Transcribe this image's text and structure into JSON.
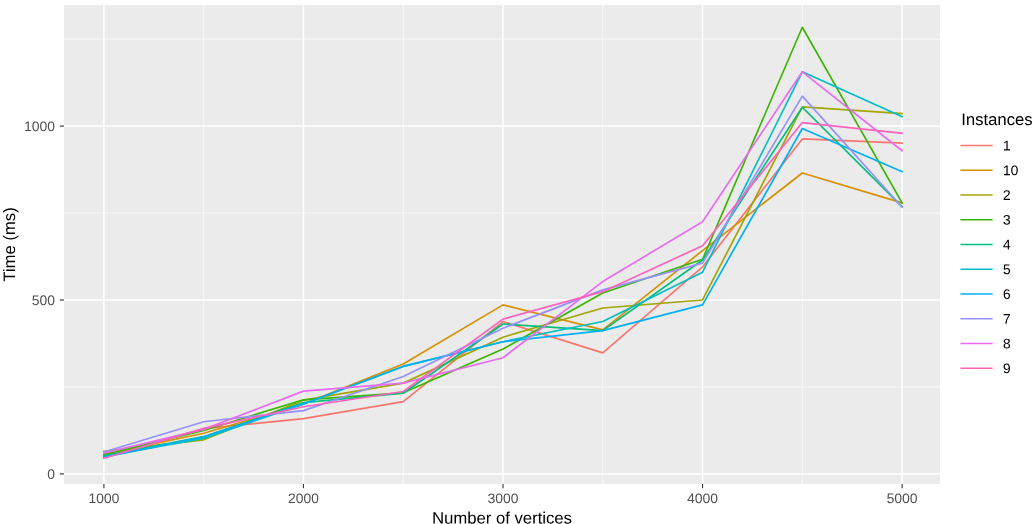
{
  "chart_data": {
    "type": "line",
    "xlabel": "Number of vertices",
    "ylabel": "Time (ms)",
    "legend_title": "Instances",
    "legend": "right",
    "grid": true,
    "x": [
      1000,
      1500,
      2000,
      2500,
      3000,
      3500,
      4000,
      4500,
      5000
    ],
    "xlim": [
      800,
      5190
    ],
    "xticks": [
      1000,
      2000,
      3000,
      4000,
      5000
    ],
    "ylim": [
      -29,
      1348
    ],
    "yticks": [
      0,
      500,
      1000
    ],
    "series": [
      {
        "name": "1",
        "color": "#F8766D",
        "values": [
          50,
          130,
          159,
          208,
          438,
          348,
          595,
          963,
          951
        ]
      },
      {
        "name": "10",
        "color": "#D89000",
        "values": [
          56,
          117,
          201,
          316,
          486,
          414,
          642,
          865,
          779
        ]
      },
      {
        "name": "2",
        "color": "#A3A500",
        "values": [
          65,
          98,
          212,
          261,
          393,
          477,
          500,
          1055,
          1036
        ]
      },
      {
        "name": "3",
        "color": "#39B600",
        "values": [
          55,
          125,
          213,
          233,
          359,
          520,
          617,
          1284,
          779
        ]
      },
      {
        "name": "4",
        "color": "#00BF7D",
        "values": [
          52,
          107,
          205,
          232,
          431,
          412,
          615,
          1054,
          768
        ]
      },
      {
        "name": "5",
        "color": "#00BFC4",
        "values": [
          50,
          102,
          201,
          309,
          380,
          438,
          580,
          1156,
          1027
        ]
      },
      {
        "name": "6",
        "color": "#00B0F6",
        "values": [
          48,
          107,
          201,
          309,
          380,
          412,
          486,
          993,
          869
        ]
      },
      {
        "name": "7",
        "color": "#9590FF",
        "values": [
          63,
          150,
          182,
          280,
          419,
          529,
          606,
          1086,
          767
        ]
      },
      {
        "name": "8",
        "color": "#E76BF3",
        "values": [
          60,
          128,
          238,
          261,
          334,
          553,
          725,
          1156,
          929
        ]
      },
      {
        "name": "9",
        "color": "#FF62BC",
        "values": [
          45,
          131,
          193,
          237,
          445,
          524,
          656,
          1010,
          979
        ]
      }
    ]
  }
}
